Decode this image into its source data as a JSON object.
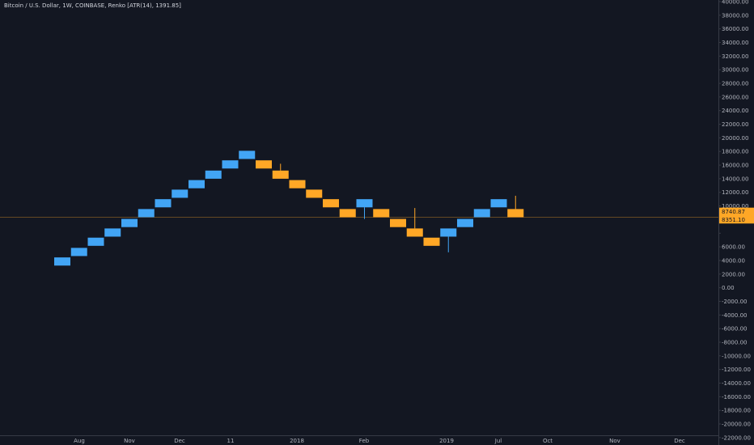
{
  "header": {
    "symbol_line": "Bitcoin / U.S. Dollar, 1W, COINBASE, Renko [ATR(14), 1391.85]"
  },
  "colors": {
    "background": "#131722",
    "up": "#42a5f5",
    "down": "#ffa726",
    "text": "#b2b5be",
    "axis_line": "#363a45",
    "price_line": "#ffa726"
  },
  "chart_data": {
    "type": "renko",
    "brick_size": 1391.85,
    "y_axis": {
      "min": -22000,
      "max": 40000,
      "step": 2000,
      "ticks": [
        "40000.00",
        "38000.00",
        "36000.00",
        "34000.00",
        "32000.00",
        "30000.00",
        "28000.00",
        "26000.00",
        "24000.00",
        "22000.00",
        "20000.00",
        "18000.00",
        "16000.00",
        "14000.00",
        "12000.00",
        "10000.00",
        "",
        "",
        "6000.00",
        "4000.00",
        "2000.00",
        "0.00",
        "-2000.00",
        "-4000.00",
        "-6000.00",
        "-8000.00",
        "-10000.00",
        "-12000.00",
        "-14000.00",
        "-16000.00",
        "-18000.00",
        "-20000.00",
        "-22000.00"
      ]
    },
    "x_axis": {
      "labels": [
        "Aug",
        "Nov",
        "Dec",
        "11",
        "2018",
        "Feb",
        "2019",
        "Jul",
        "Oct",
        "Nov",
        "Dec"
      ]
    },
    "bricks": [
      {
        "dir": "up",
        "low": 1250,
        "high": 2450
      },
      {
        "dir": "up",
        "low": 2650,
        "high": 3850
      },
      {
        "dir": "up",
        "low": 4150,
        "high": 5350
      },
      {
        "dir": "up",
        "low": 5500,
        "high": 6700
      },
      {
        "dir": "up",
        "low": 6900,
        "high": 8100
      },
      {
        "dir": "up",
        "low": 8350,
        "high": 9550
      },
      {
        "dir": "up",
        "low": 9800,
        "high": 11000
      },
      {
        "dir": "up",
        "low": 11200,
        "high": 12400
      },
      {
        "dir": "up",
        "low": 12600,
        "high": 13800
      },
      {
        "dir": "up",
        "low": 14000,
        "high": 15200
      },
      {
        "dir": "up",
        "low": 15500,
        "high": 16700
      },
      {
        "dir": "up",
        "low": 16900,
        "high": 18100
      },
      {
        "dir": "down",
        "low": 15500,
        "high": 16700
      },
      {
        "dir": "down",
        "low": 14000,
        "high": 15200,
        "wick_high": 16200
      },
      {
        "dir": "down",
        "low": 12600,
        "high": 13800
      },
      {
        "dir": "down",
        "low": 11200,
        "high": 12400
      },
      {
        "dir": "down",
        "low": 9800,
        "high": 11000
      },
      {
        "dir": "down",
        "low": 8350,
        "high": 9550
      },
      {
        "dir": "up",
        "low": 9800,
        "high": 11000,
        "wick_low": 8100
      },
      {
        "dir": "down",
        "low": 8350,
        "high": 9550
      },
      {
        "dir": "down",
        "low": 6900,
        "high": 8100
      },
      {
        "dir": "down",
        "low": 5500,
        "high": 6700,
        "wick_high": 9700
      },
      {
        "dir": "down",
        "low": 4150,
        "high": 5350
      },
      {
        "dir": "up",
        "low": 5500,
        "high": 6700,
        "wick_low": 3200
      },
      {
        "dir": "up",
        "low": 6900,
        "high": 8100
      },
      {
        "dir": "up",
        "low": 8350,
        "high": 9550
      },
      {
        "dir": "up",
        "low": 9800,
        "high": 11000
      },
      {
        "dir": "down",
        "low": 8350,
        "high": 9550,
        "wick_high": 11500
      }
    ],
    "price_tags": [
      {
        "value": "8740.87",
        "price": 9160,
        "color": "#ffa726"
      },
      {
        "value": "8351.10",
        "price": 8020,
        "color": "#ffa726"
      }
    ],
    "current_price": 8351.1
  }
}
